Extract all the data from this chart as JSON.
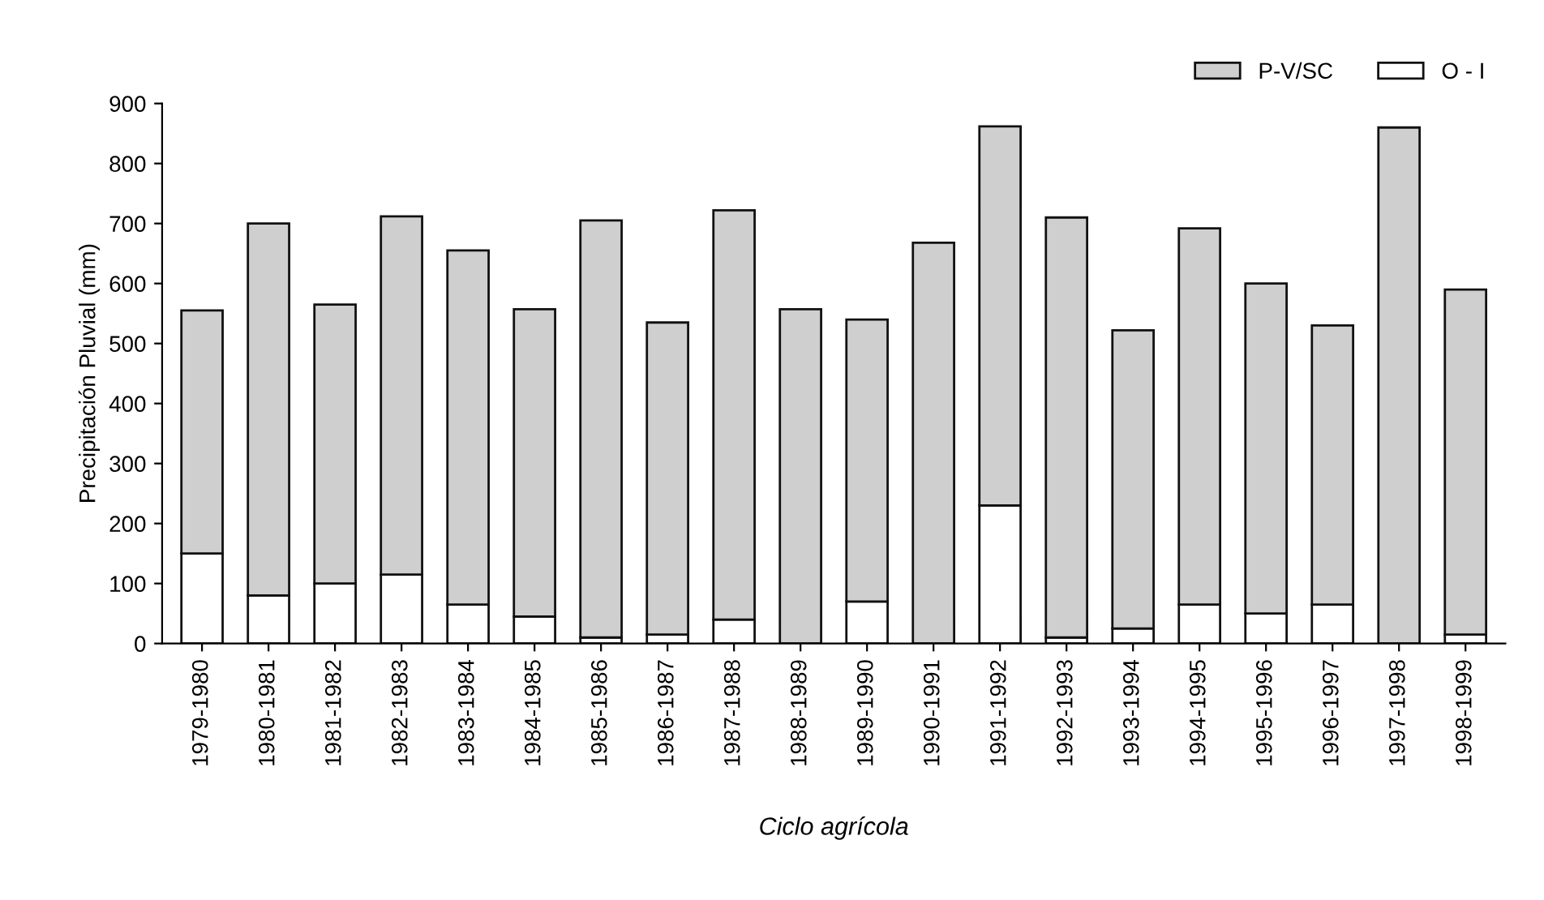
{
  "chart_data": {
    "type": "bar",
    "stacked": true,
    "xlabel": "Ciclo agrícola",
    "ylabel": "Precipitación Pluvial (mm)",
    "categories": [
      "1979-1980",
      "1980-1981",
      "1981-1982",
      "1982-1983",
      "1983-1984",
      "1984-1985",
      "1985-1986",
      "1986-1987",
      "1987-1988",
      "1988-1989",
      "1989-1990",
      "1990-1991",
      "1991-1992",
      "1992-1993",
      "1993-1994",
      "1994-1995",
      "1995-1996",
      "1996-1997",
      "1997-1998",
      "1998-1999"
    ],
    "series": [
      {
        "name": "O - I",
        "color": "#ffffff",
        "values": [
          150,
          80,
          100,
          115,
          65,
          45,
          10,
          15,
          40,
          null,
          70,
          null,
          230,
          10,
          25,
          65,
          50,
          65,
          null,
          15
        ]
      },
      {
        "name": "P-V/SC",
        "color": "#cfcfcf",
        "values": [
          405,
          620,
          465,
          597,
          590,
          512,
          695,
          520,
          682,
          557,
          470,
          668,
          632,
          700,
          497,
          627,
          550,
          465,
          860,
          575
        ]
      }
    ],
    "ylim": [
      0,
      900
    ],
    "yticks": [
      0,
      100,
      200,
      300,
      400,
      500,
      600,
      700,
      800,
      900
    ],
    "grid": false,
    "legend": "top right"
  }
}
